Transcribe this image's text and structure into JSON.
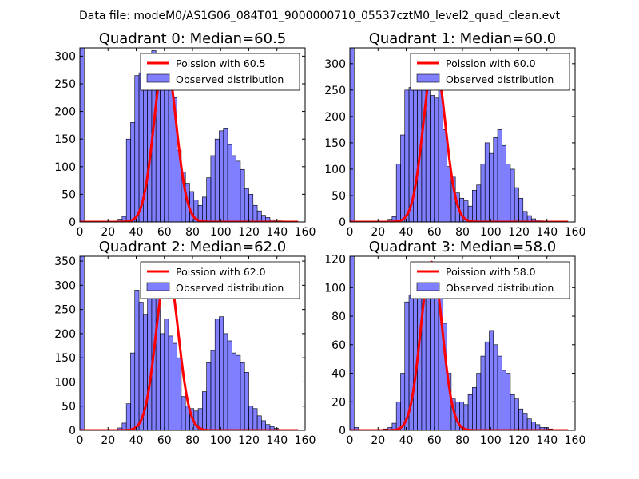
{
  "suptitle": "Data file: modeM0/AS1G06_084T01_9000000710_05537cztM0_level2_quad_clean.evt",
  "colors": {
    "hist_fill": "#0000ff",
    "hist_edge": "#000000",
    "curve": "#ff0000"
  },
  "chart_data": [
    {
      "type": "bar",
      "title": "Quadrant 0: Median=60.5",
      "legend": [
        "Poission with 60.5",
        "Observed distribution"
      ],
      "legend_loc": "top-right",
      "xlim": [
        0,
        160
      ],
      "ylim": [
        0,
        315
      ],
      "xticks": [
        0,
        20,
        40,
        60,
        80,
        100,
        120,
        140,
        160
      ],
      "yticks": [
        0,
        50,
        100,
        150,
        200,
        250,
        300
      ],
      "median": 60.5,
      "bin_width": 3,
      "bin_starts": [
        0,
        3,
        6,
        9,
        12,
        15,
        18,
        21,
        24,
        27,
        30,
        33,
        36,
        39,
        42,
        45,
        48,
        51,
        54,
        57,
        60,
        63,
        66,
        69,
        72,
        75,
        78,
        81,
        84,
        87,
        90,
        93,
        96,
        99,
        102,
        105,
        108,
        111,
        114,
        117,
        120,
        123,
        126,
        129,
        132,
        135,
        138,
        141,
        144,
        147,
        150,
        153
      ],
      "counts": [
        315,
        0,
        0,
        0,
        0,
        0,
        0,
        0,
        0,
        5,
        10,
        150,
        180,
        265,
        270,
        255,
        275,
        310,
        255,
        250,
        260,
        255,
        225,
        130,
        90,
        70,
        55,
        40,
        30,
        45,
        80,
        120,
        150,
        165,
        170,
        140,
        120,
        110,
        95,
        60,
        50,
        30,
        20,
        12,
        8,
        4,
        2,
        2,
        1,
        0,
        0,
        0
      ],
      "curve_peak": 300
    },
    {
      "type": "bar",
      "title": "Quadrant 1: Median=60.0",
      "legend": [
        "Poission with 60.0",
        "Observed distribution"
      ],
      "legend_loc": "top-right",
      "xlim": [
        0,
        160
      ],
      "ylim": [
        0,
        330
      ],
      "xticks": [
        0,
        20,
        40,
        60,
        80,
        100,
        120,
        140,
        160
      ],
      "yticks": [
        0,
        50,
        100,
        150,
        200,
        250,
        300
      ],
      "median": 60.0,
      "bin_width": 3,
      "bin_starts": [
        0,
        3,
        6,
        9,
        12,
        15,
        18,
        21,
        24,
        27,
        30,
        33,
        36,
        39,
        42,
        45,
        48,
        51,
        54,
        57,
        60,
        63,
        66,
        69,
        72,
        75,
        78,
        81,
        84,
        87,
        90,
        93,
        96,
        99,
        102,
        105,
        108,
        111,
        114,
        117,
        120,
        123,
        126,
        129,
        132,
        135,
        138,
        141,
        144,
        147,
        150,
        153
      ],
      "counts": [
        330,
        0,
        0,
        0,
        0,
        0,
        0,
        0,
        0,
        5,
        10,
        110,
        165,
        250,
        255,
        270,
        285,
        300,
        270,
        240,
        235,
        260,
        175,
        105,
        85,
        55,
        45,
        40,
        30,
        60,
        70,
        110,
        150,
        130,
        160,
        175,
        145,
        110,
        100,
        65,
        45,
        20,
        12,
        6,
        4,
        2,
        1,
        1,
        0,
        0,
        0,
        0
      ],
      "curve_peak": 310
    },
    {
      "type": "bar",
      "title": "Quadrant 2: Median=62.0",
      "legend": [
        "Poission with 62.0",
        "Observed distribution"
      ],
      "legend_loc": "top-right",
      "xlim": [
        0,
        160
      ],
      "ylim": [
        0,
        360
      ],
      "xticks": [
        0,
        20,
        40,
        60,
        80,
        100,
        120,
        140,
        160
      ],
      "yticks": [
        0,
        50,
        100,
        150,
        200,
        250,
        300,
        350
      ],
      "median": 62.0,
      "bin_width": 3,
      "bin_starts": [
        0,
        3,
        6,
        9,
        12,
        15,
        18,
        21,
        24,
        27,
        30,
        33,
        36,
        39,
        42,
        45,
        48,
        51,
        54,
        57,
        60,
        63,
        66,
        69,
        72,
        75,
        78,
        81,
        84,
        87,
        90,
        93,
        96,
        99,
        102,
        105,
        108,
        111,
        114,
        117,
        120,
        123,
        126,
        129,
        132,
        135,
        138,
        141,
        144,
        147,
        150,
        153
      ],
      "counts": [
        360,
        0,
        0,
        0,
        0,
        0,
        0,
        0,
        0,
        5,
        15,
        55,
        160,
        290,
        265,
        240,
        285,
        320,
        275,
        200,
        230,
        195,
        180,
        150,
        70,
        50,
        45,
        40,
        45,
        80,
        140,
        165,
        230,
        235,
        200,
        185,
        160,
        155,
        140,
        120,
        50,
        45,
        30,
        20,
        12,
        8,
        4,
        2,
        0,
        0,
        0,
        0
      ],
      "curve_peak": 335
    },
    {
      "type": "bar",
      "title": "Quadrant 3: Median=58.0",
      "legend": [
        "Poission with 58.0",
        "Observed distribution"
      ],
      "legend_loc": "top-right",
      "xlim": [
        0,
        160
      ],
      "ylim": [
        0,
        122
      ],
      "xticks": [
        0,
        20,
        40,
        60,
        80,
        100,
        120,
        140,
        160
      ],
      "yticks": [
        0,
        20,
        40,
        60,
        80,
        100,
        120
      ],
      "median": 58.0,
      "bin_width": 3,
      "bin_starts": [
        0,
        3,
        6,
        9,
        12,
        15,
        18,
        21,
        24,
        27,
        30,
        33,
        36,
        39,
        42,
        45,
        48,
        51,
        54,
        57,
        60,
        63,
        66,
        69,
        72,
        75,
        78,
        81,
        84,
        87,
        90,
        93,
        96,
        99,
        102,
        105,
        108,
        111,
        114,
        117,
        120,
        123,
        126,
        129,
        132,
        135,
        138,
        141,
        144,
        147,
        150,
        153
      ],
      "counts": [
        122,
        2,
        0,
        0,
        0,
        0,
        0,
        0,
        1,
        2,
        5,
        20,
        40,
        90,
        95,
        112,
        100,
        108,
        100,
        115,
        92,
        95,
        75,
        40,
        22,
        20,
        20,
        18,
        25,
        30,
        40,
        52,
        62,
        70,
        60,
        52,
        42,
        40,
        25,
        22,
        15,
        12,
        8,
        6,
        4,
        2,
        2,
        1,
        0,
        0,
        0,
        0
      ],
      "curve_peak": 118
    }
  ]
}
